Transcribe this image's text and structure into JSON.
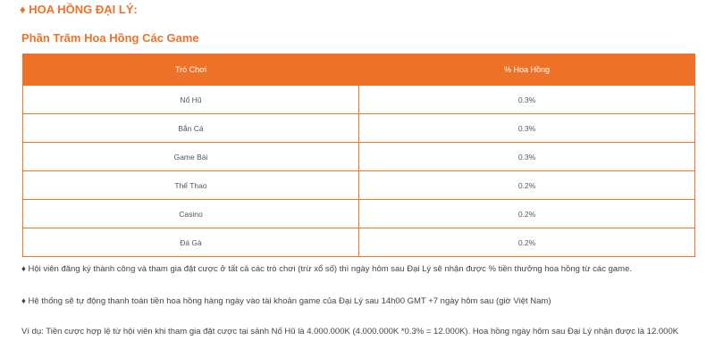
{
  "header": {
    "title": "♦ HOA HỒNG ĐẠI LÝ:",
    "subtitle": "Phần Trăm Hoa Hồng Các Game"
  },
  "table": {
    "columns": [
      "Trò Chơi",
      "% Hoa Hồng"
    ],
    "rows": [
      [
        "Nổ Hũ",
        "0.3%"
      ],
      [
        "Bắn Cá",
        "0.3%"
      ],
      [
        "Game Bài",
        "0.3%"
      ],
      [
        "Thể Thao",
        "0.2%"
      ],
      [
        "Casino",
        "0.2%"
      ],
      [
        "Đá Gà",
        "0.2%"
      ]
    ]
  },
  "paragraphs": [
    "♦ Hội viên đăng ký thành công và tham gia đặt cược ở tất cả các trò chơi (trừ xổ số) thì ngày hôm sau Đại Lý sẽ nhận được % tiền thưởng hoa hồng từ các game.",
    "♦ Hệ thống sẽ tự động thanh toán tiền hoa hồng hàng ngày vào tài khoản game của Đại Lý sau 14h00 GMT +7 ngày hôm sau (giờ Việt Nam)",
    "Ví dụ: Tiền cược hợp lệ từ hội viên khi tham gia đặt cược tại sảnh Nổ Hũ là 4.000.000K (4.000.000K *0.3% = 12.000K). Hoa hồng ngày hôm sau Đại Lý nhận được là 12.000K"
  ]
}
